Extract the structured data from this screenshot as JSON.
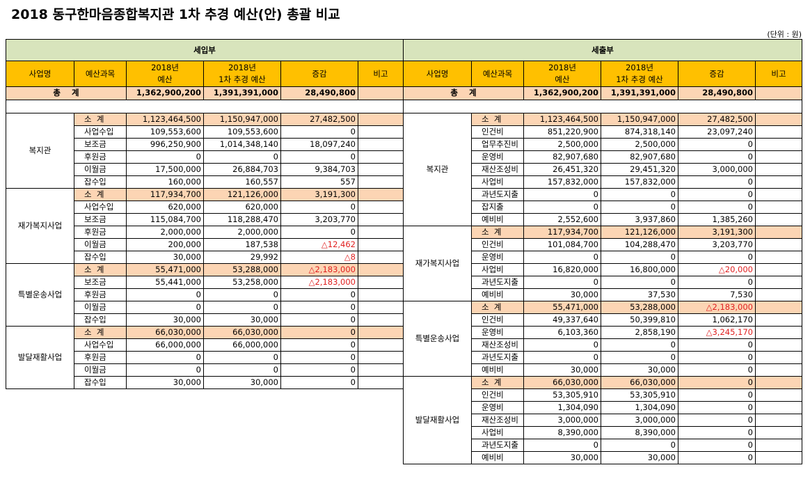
{
  "title": "2018 동구한마음종합복지관 1차 추경 예산(안) 총괄 비교",
  "unit": "(단위 : 원)",
  "headers": {
    "business": "사업명",
    "item": "예산과목",
    "budget_l1": "2018년",
    "budget_l2": "예산",
    "supp_l1": "2018년",
    "supp_l2": "1차 추경 예산",
    "change": "증감",
    "note": "비고"
  },
  "income": {
    "section": "세입부",
    "total_label": "총    계",
    "total": [
      "1,362,900,200",
      "1,391,391,000",
      "28,490,800"
    ],
    "groups": [
      {
        "name": "복지관",
        "rows": [
          {
            "item": "소  계",
            "v": [
              "1,123,464,500",
              "1,150,947,000",
              "27,482,500"
            ]
          },
          {
            "item": "사업수입",
            "v": [
              "109,553,600",
              "109,553,600",
              "0"
            ]
          },
          {
            "item": "보조금",
            "v": [
              "996,250,900",
              "1,014,348,140",
              "18,097,240"
            ]
          },
          {
            "item": "후원금",
            "v": [
              "0",
              "0",
              "0"
            ]
          },
          {
            "item": "이월금",
            "v": [
              "17,500,000",
              "26,884,703",
              "9,384,703"
            ]
          },
          {
            "item": "잡수입",
            "v": [
              "160,000",
              "160,557",
              "557"
            ]
          }
        ]
      },
      {
        "name": "재가복지사업",
        "rows": [
          {
            "item": "소  계",
            "v": [
              "117,934,700",
              "121,126,000",
              "3,191,300"
            ]
          },
          {
            "item": "사업수입",
            "v": [
              "620,000",
              "620,000",
              "0"
            ]
          },
          {
            "item": "보조금",
            "v": [
              "115,084,700",
              "118,288,470",
              "3,203,770"
            ]
          },
          {
            "item": "후원금",
            "v": [
              "2,000,000",
              "2,000,000",
              "0"
            ]
          },
          {
            "item": "이월금",
            "v": [
              "200,000",
              "187,538",
              "△12,462"
            ]
          },
          {
            "item": "잡수입",
            "v": [
              "30,000",
              "29,992",
              "△8"
            ]
          }
        ]
      },
      {
        "name": "특별운송사업",
        "rows": [
          {
            "item": "소  계",
            "v": [
              "55,471,000",
              "53,288,000",
              "△2,183,000"
            ]
          },
          {
            "item": "보조금",
            "v": [
              "55,441,000",
              "53,258,000",
              "△2,183,000"
            ]
          },
          {
            "item": "후원금",
            "v": [
              "0",
              "0",
              "0"
            ]
          },
          {
            "item": "이월금",
            "v": [
              "0",
              "0",
              "0"
            ]
          },
          {
            "item": "잡수입",
            "v": [
              "30,000",
              "30,000",
              "0"
            ]
          }
        ]
      },
      {
        "name": "발달재활사업",
        "rows": [
          {
            "item": "소  계",
            "v": [
              "66,030,000",
              "66,030,000",
              "0"
            ]
          },
          {
            "item": "사업수입",
            "v": [
              "66,000,000",
              "66,000,000",
              "0"
            ]
          },
          {
            "item": "후원금",
            "v": [
              "0",
              "0",
              "0"
            ]
          },
          {
            "item": "이월금",
            "v": [
              "0",
              "0",
              "0"
            ]
          },
          {
            "item": "잡수입",
            "v": [
              "30,000",
              "30,000",
              "0"
            ]
          }
        ]
      }
    ]
  },
  "expense": {
    "section": "세출부",
    "total_label": "총    계",
    "total": [
      "1,362,900,200",
      "1,391,391,000",
      "28,490,800"
    ],
    "groups": [
      {
        "name": "복지관",
        "rows": [
          {
            "item": "소  계",
            "v": [
              "1,123,464,500",
              "1,150,947,000",
              "27,482,500"
            ]
          },
          {
            "item": "인건비",
            "v": [
              "851,220,900",
              "874,318,140",
              "23,097,240"
            ]
          },
          {
            "item": "업무추진비",
            "v": [
              "2,500,000",
              "2,500,000",
              "0"
            ]
          },
          {
            "item": "운영비",
            "v": [
              "82,907,680",
              "82,907,680",
              "0"
            ]
          },
          {
            "item": "재산조성비",
            "v": [
              "26,451,320",
              "29,451,320",
              "3,000,000"
            ]
          },
          {
            "item": "사업비",
            "v": [
              "157,832,000",
              "157,832,000",
              "0"
            ]
          },
          {
            "item": "과년도지출",
            "v": [
              "0",
              "0",
              "0"
            ]
          },
          {
            "item": "잡지출",
            "v": [
              "0",
              "0",
              "0"
            ]
          },
          {
            "item": "예비비",
            "v": [
              "2,552,600",
              "3,937,860",
              "1,385,260"
            ]
          }
        ]
      },
      {
        "name": "재가복지사업",
        "rows": [
          {
            "item": "소  계",
            "v": [
              "117,934,700",
              "121,126,000",
              "3,191,300"
            ]
          },
          {
            "item": "인건비",
            "v": [
              "101,084,700",
              "104,288,470",
              "3,203,770"
            ]
          },
          {
            "item": "운영비",
            "v": [
              "0",
              "0",
              "0"
            ]
          },
          {
            "item": "사업비",
            "v": [
              "16,820,000",
              "16,800,000",
              "△20,000"
            ]
          },
          {
            "item": "과년도지출",
            "v": [
              "0",
              "0",
              "0"
            ]
          },
          {
            "item": "예비비",
            "v": [
              "30,000",
              "37,530",
              "7,530"
            ]
          }
        ]
      },
      {
        "name": "특별운송사업",
        "rows": [
          {
            "item": "소  계",
            "v": [
              "55,471,000",
              "53,288,000",
              "△2,183,000"
            ]
          },
          {
            "item": "인건비",
            "v": [
              "49,337,640",
              "50,399,810",
              "1,062,170"
            ]
          },
          {
            "item": "운영비",
            "v": [
              "6,103,360",
              "2,858,190",
              "△3,245,170"
            ]
          },
          {
            "item": "재산조성비",
            "v": [
              "0",
              "0",
              "0"
            ]
          },
          {
            "item": "과년도지출",
            "v": [
              "0",
              "0",
              "0"
            ]
          },
          {
            "item": "예비비",
            "v": [
              "30,000",
              "30,000",
              "0"
            ]
          }
        ]
      },
      {
        "name": "발달재활사업",
        "rows": [
          {
            "item": "소  계",
            "v": [
              "66,030,000",
              "66,030,000",
              "0"
            ]
          },
          {
            "item": "인건비",
            "v": [
              "53,305,910",
              "53,305,910",
              "0"
            ]
          },
          {
            "item": "운영비",
            "v": [
              "1,304,090",
              "1,304,090",
              "0"
            ]
          },
          {
            "item": "재산조성비",
            "v": [
              "3,000,000",
              "3,000,000",
              "0"
            ]
          },
          {
            "item": "사업비",
            "v": [
              "8,390,000",
              "8,390,000",
              "0"
            ]
          },
          {
            "item": "과년도지출",
            "v": [
              "0",
              "0",
              "0"
            ]
          },
          {
            "item": "예비비",
            "v": [
              "30,000",
              "30,000",
              "0"
            ]
          }
        ]
      }
    ]
  }
}
